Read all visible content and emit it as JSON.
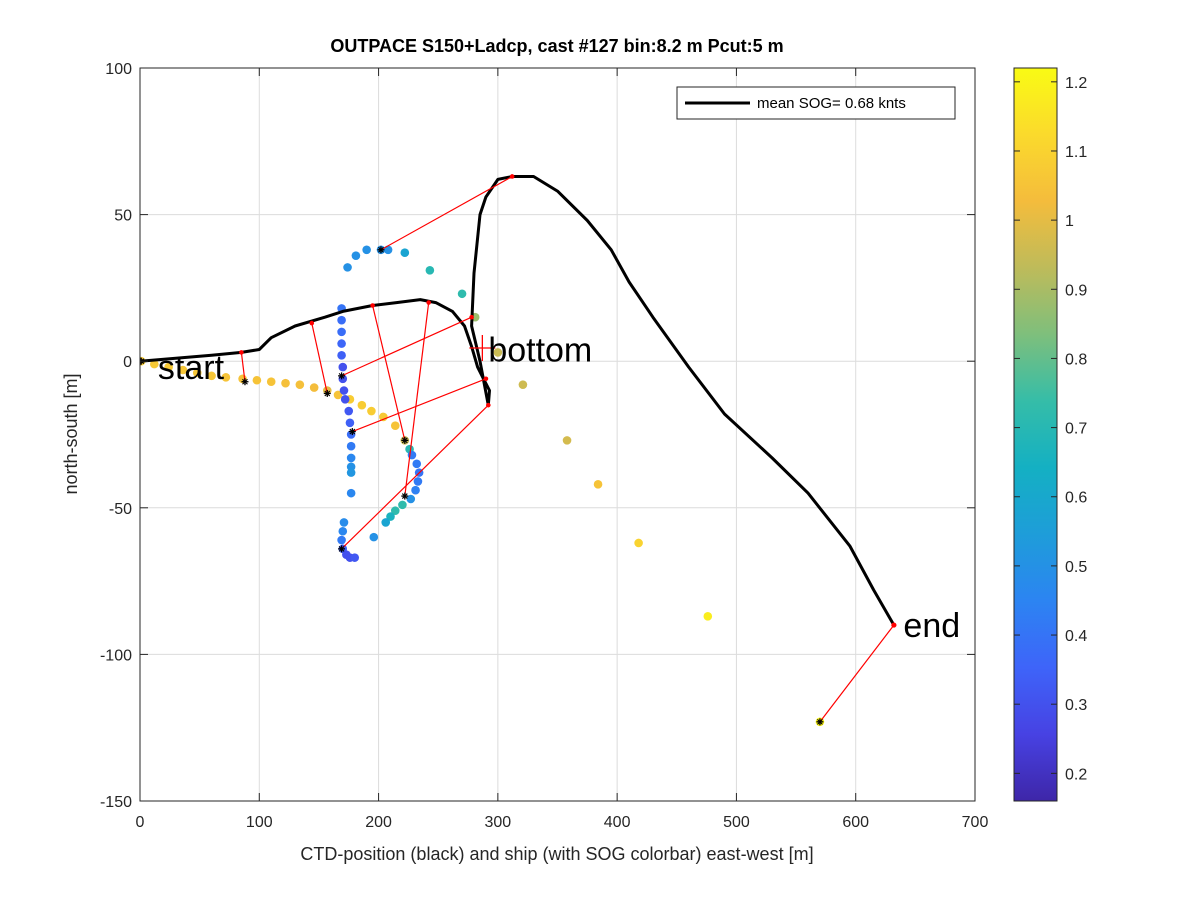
{
  "chart_data": {
    "type": "scatter",
    "title": "OUTPACE S150+Ladcp, cast #127 bin:8.2 m  Pcut:5 m",
    "xlabel": "CTD-position (black) and ship (with SOG colorbar) east-west [m]",
    "ylabel": "north-south [m]",
    "xlim": [
      0,
      700
    ],
    "ylim": [
      -150,
      100
    ],
    "x_ticks": [
      "0",
      "100",
      "200",
      "300",
      "400",
      "500",
      "600",
      "700"
    ],
    "y_ticks": [
      "100",
      "50",
      "0",
      "-50",
      "-100",
      "-150"
    ],
    "x_tick_values": [
      0,
      100,
      200,
      300,
      400,
      500,
      600,
      700
    ],
    "y_tick_values": [
      100,
      50,
      0,
      -50,
      -100,
      -150
    ],
    "grid": true,
    "legend": {
      "placement": "top-right",
      "entries": [
        "mean SOG=  0.68 knts"
      ],
      "color": "#000000"
    },
    "colorbar": {
      "label": "",
      "range": [
        0.16,
        1.22
      ],
      "ticks": [
        "1.2",
        "1.1",
        "1",
        "0.9",
        "0.8",
        "0.7",
        "0.6",
        "0.5",
        "0.4",
        "0.3",
        "0.2"
      ],
      "tick_values": [
        1.2,
        1.1,
        1.0,
        0.9,
        0.8,
        0.7,
        0.6,
        0.5,
        0.4,
        0.3,
        0.2
      ],
      "colors": [
        "#3e26a8",
        "#4742e3",
        "#3e64f9",
        "#2c84f2",
        "#1e9dd9",
        "#14b0c3",
        "#35bda8",
        "#7ebf7c",
        "#bebb5a",
        "#f4bc3c",
        "#fbda2c",
        "#f9fb14"
      ]
    },
    "annotations": [
      {
        "text": "start",
        "x": 15,
        "y": -2
      },
      {
        "text": "bottom",
        "x": 292,
        "y": 4
      },
      {
        "text": "end",
        "x": 640,
        "y": -90
      }
    ],
    "ctd_track": {
      "color": "#000000",
      "points": [
        [
          0,
          0
        ],
        [
          30,
          1
        ],
        [
          60,
          2
        ],
        [
          85,
          3
        ],
        [
          100,
          4
        ],
        [
          110,
          8
        ],
        [
          130,
          12
        ],
        [
          155,
          15
        ],
        [
          170,
          17
        ],
        [
          195,
          19
        ],
        [
          215,
          20
        ],
        [
          235,
          21
        ],
        [
          248,
          20
        ],
        [
          262,
          17
        ],
        [
          272,
          12
        ],
        [
          278,
          5
        ],
        [
          283,
          -2
        ],
        [
          288,
          -6
        ],
        [
          293,
          -10
        ],
        [
          292,
          -15
        ],
        [
          285,
          0
        ],
        [
          278,
          12
        ],
        [
          280,
          30
        ],
        [
          285,
          50
        ],
        [
          290,
          56
        ],
        [
          300,
          62
        ],
        [
          312,
          63
        ],
        [
          330,
          63
        ],
        [
          350,
          58
        ],
        [
          375,
          48
        ],
        [
          395,
          38
        ],
        [
          410,
          27
        ],
        [
          430,
          15
        ],
        [
          460,
          -2
        ],
        [
          490,
          -18
        ],
        [
          530,
          -33
        ],
        [
          560,
          -45
        ],
        [
          595,
          -63
        ],
        [
          615,
          -78
        ],
        [
          632,
          -90
        ]
      ]
    },
    "ship_points": [
      {
        "x": 1,
        "y": 0,
        "sog": 1.08
      },
      {
        "x": 12,
        "y": -1,
        "sog": 1.07
      },
      {
        "x": 24,
        "y": -2,
        "sog": 1.07
      },
      {
        "x": 36,
        "y": -3,
        "sog": 1.06
      },
      {
        "x": 48,
        "y": -4,
        "sog": 1.06
      },
      {
        "x": 60,
        "y": -5,
        "sog": 1.06
      },
      {
        "x": 72,
        "y": -5.5,
        "sog": 1.05
      },
      {
        "x": 86,
        "y": -6,
        "sog": 1.05
      },
      {
        "x": 98,
        "y": -6.5,
        "sog": 1.05
      },
      {
        "x": 110,
        "y": -7,
        "sog": 1.05
      },
      {
        "x": 122,
        "y": -7.5,
        "sog": 1.04
      },
      {
        "x": 134,
        "y": -8,
        "sog": 1.04
      },
      {
        "x": 146,
        "y": -9,
        "sog": 1.03
      },
      {
        "x": 157,
        "y": -10,
        "sog": 1.0
      },
      {
        "x": 166,
        "y": -11.5,
        "sog": 1.05
      },
      {
        "x": 176,
        "y": -13,
        "sog": 1.08
      },
      {
        "x": 186,
        "y": -15,
        "sog": 1.08
      },
      {
        "x": 194,
        "y": -17,
        "sog": 1.08
      },
      {
        "x": 204,
        "y": -19,
        "sog": 1.07
      },
      {
        "x": 214,
        "y": -22,
        "sog": 1.05
      },
      {
        "x": 222,
        "y": -27,
        "sog": 0.95
      },
      {
        "x": 226,
        "y": -30,
        "sog": 0.7
      },
      {
        "x": 170,
        "y": -2,
        "sog": 0.3
      },
      {
        "x": 170,
        "y": -6,
        "sog": 0.3
      },
      {
        "x": 171,
        "y": -10,
        "sog": 0.3
      },
      {
        "x": 172,
        "y": -13,
        "sog": 0.3
      },
      {
        "x": 175,
        "y": -17,
        "sog": 0.32
      },
      {
        "x": 176,
        "y": -21,
        "sog": 0.34
      },
      {
        "x": 177,
        "y": -25,
        "sog": 0.38
      },
      {
        "x": 177,
        "y": -29,
        "sog": 0.42
      },
      {
        "x": 177,
        "y": -33,
        "sog": 0.46
      },
      {
        "x": 177,
        "y": -36,
        "sog": 0.5
      },
      {
        "x": 177,
        "y": -38,
        "sog": 0.52
      },
      {
        "x": 169,
        "y": 18,
        "sog": 0.4
      },
      {
        "x": 169,
        "y": 14,
        "sog": 0.38
      },
      {
        "x": 169,
        "y": 10,
        "sog": 0.38
      },
      {
        "x": 169,
        "y": 6,
        "sog": 0.36
      },
      {
        "x": 169,
        "y": 2,
        "sog": 0.34
      },
      {
        "x": 174,
        "y": 32,
        "sog": 0.5
      },
      {
        "x": 181,
        "y": 36,
        "sog": 0.5
      },
      {
        "x": 190,
        "y": 38,
        "sog": 0.5
      },
      {
        "x": 202,
        "y": 38,
        "sog": 0.5
      },
      {
        "x": 208,
        "y": 38,
        "sog": 0.5
      },
      {
        "x": 222,
        "y": 37,
        "sog": 0.58
      },
      {
        "x": 243,
        "y": 31,
        "sog": 0.7
      },
      {
        "x": 270,
        "y": 23,
        "sog": 0.72
      },
      {
        "x": 281,
        "y": 15,
        "sog": 0.88
      },
      {
        "x": 300,
        "y": 3,
        "sog": 0.95
      },
      {
        "x": 321,
        "y": -8,
        "sog": 0.96
      },
      {
        "x": 358,
        "y": -27,
        "sog": 0.97
      },
      {
        "x": 384,
        "y": -42,
        "sog": 1.05
      },
      {
        "x": 418,
        "y": -62,
        "sog": 1.1
      },
      {
        "x": 476,
        "y": -87,
        "sog": 1.18
      },
      {
        "x": 570,
        "y": -123,
        "sog": 1.2
      },
      {
        "x": 228,
        "y": -32,
        "sog": 0.42
      },
      {
        "x": 232,
        "y": -35,
        "sog": 0.42
      },
      {
        "x": 234,
        "y": -38,
        "sog": 0.4
      },
      {
        "x": 233,
        "y": -41,
        "sog": 0.42
      },
      {
        "x": 231,
        "y": -44,
        "sog": 0.44
      },
      {
        "x": 227,
        "y": -47,
        "sog": 0.5
      },
      {
        "x": 220,
        "y": -49,
        "sog": 0.72
      },
      {
        "x": 214,
        "y": -51,
        "sog": 0.72
      },
      {
        "x": 210,
        "y": -53,
        "sog": 0.66
      },
      {
        "x": 206,
        "y": -55,
        "sog": 0.58
      },
      {
        "x": 196,
        "y": -60,
        "sog": 0.5
      },
      {
        "x": 177,
        "y": -45,
        "sog": 0.46
      },
      {
        "x": 171,
        "y": -55,
        "sog": 0.48
      },
      {
        "x": 170,
        "y": -58,
        "sog": 0.46
      },
      {
        "x": 169,
        "y": -61,
        "sog": 0.42
      },
      {
        "x": 170,
        "y": -64,
        "sog": 0.34
      },
      {
        "x": 173,
        "y": -66,
        "sog": 0.3
      },
      {
        "x": 176,
        "y": -67,
        "sog": 0.3
      },
      {
        "x": 180,
        "y": -67,
        "sog": 0.32
      }
    ],
    "links": [
      {
        "ctd": [
          0,
          0
        ],
        "ship": [
          1,
          0
        ]
      },
      {
        "ctd": [
          85,
          3
        ],
        "ship": [
          88,
          -7
        ]
      },
      {
        "ctd": [
          144,
          13
        ],
        "ship": [
          157,
          -11
        ]
      },
      {
        "ctd": [
          195,
          19
        ],
        "ship": [
          222,
          -27
        ]
      },
      {
        "ctd": [
          242,
          20
        ],
        "ship": [
          222,
          -46
        ]
      },
      {
        "ctd": [
          278,
          15
        ],
        "ship": [
          169,
          -5
        ]
      },
      {
        "ctd": [
          290,
          -6
        ],
        "ship": [
          178,
          -24
        ]
      },
      {
        "ctd": [
          292,
          -15
        ],
        "ship": [
          169,
          -64
        ]
      },
      {
        "ctd": [
          312,
          63
        ],
        "ship": [
          202,
          38
        ]
      },
      {
        "ctd": [
          632,
          -90
        ],
        "ship": [
          570,
          -123
        ]
      }
    ],
    "bottom_marker": {
      "x": 287,
      "y": 4.5
    },
    "end_marker": {
      "x": 632,
      "y": -90
    }
  }
}
